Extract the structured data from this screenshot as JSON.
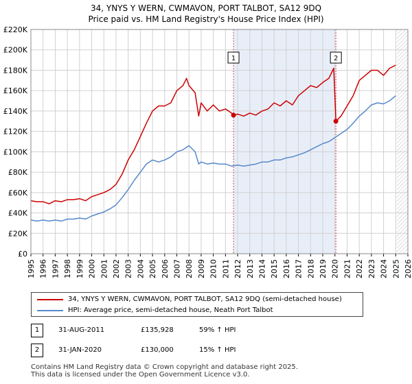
{
  "chart_data": {
    "type": "line",
    "title": "34, YNYS Y WERN, CWMAVON, PORT TALBOT, SA12 9DQ",
    "subtitle": "Price paid vs. HM Land Registry's House Price Index (HPI)",
    "x_range": [
      1995,
      2026
    ],
    "ylim": [
      0,
      220000
    ],
    "x_ticks": [
      "1995",
      "1996",
      "1997",
      "1998",
      "1999",
      "2000",
      "2001",
      "2002",
      "2003",
      "2004",
      "2005",
      "2006",
      "2007",
      "2008",
      "2009",
      "2010",
      "2011",
      "2012",
      "2013",
      "2014",
      "2015",
      "2016",
      "2017",
      "2018",
      "2019",
      "2020",
      "2021",
      "2022",
      "2023",
      "2024",
      "2025",
      "2026"
    ],
    "y_ticks": [
      "£0",
      "£20K",
      "£40K",
      "£60K",
      "£80K",
      "£100K",
      "£120K",
      "£140K",
      "£160K",
      "£180K",
      "£200K",
      "£220K"
    ],
    "series": [
      {
        "name": "34, YNYS Y WERN, CWMAVON, PORT TALBOT, SA12 9DQ (semi-detached house)",
        "color": "#cc0000",
        "x": [
          1995.0,
          1995.5,
          1996.0,
          1996.5,
          1997.0,
          1997.5,
          1998.0,
          1998.5,
          1999.0,
          1999.5,
          2000.0,
          2000.5,
          2001.0,
          2001.5,
          2002.0,
          2002.5,
          2003.0,
          2003.5,
          2004.0,
          2004.5,
          2005.0,
          2005.5,
          2006.0,
          2006.5,
          2007.0,
          2007.5,
          2007.8,
          2008.0,
          2008.5,
          2008.8,
          2009.0,
          2009.5,
          2010.0,
          2010.5,
          2011.0,
          2011.5,
          2011.66,
          2012.0,
          2012.5,
          2013.0,
          2013.5,
          2014.0,
          2014.5,
          2015.0,
          2015.5,
          2016.0,
          2016.5,
          2017.0,
          2017.5,
          2018.0,
          2018.5,
          2019.0,
          2019.5,
          2019.9,
          2020.08,
          2020.5,
          2021.0,
          2021.5,
          2022.0,
          2022.5,
          2023.0,
          2023.5,
          2024.0,
          2024.5,
          2025.0
        ],
        "values": [
          52000,
          51000,
          51000,
          49000,
          52000,
          51000,
          53000,
          53000,
          54000,
          52000,
          56000,
          58000,
          60000,
          63000,
          68000,
          78000,
          92000,
          102000,
          115000,
          128000,
          140000,
          145000,
          145000,
          148000,
          160000,
          165000,
          172000,
          165000,
          158000,
          135000,
          148000,
          140000,
          146000,
          140000,
          142000,
          138000,
          135928,
          137000,
          135000,
          138000,
          136000,
          140000,
          142000,
          148000,
          145000,
          150000,
          146000,
          155000,
          160000,
          165000,
          163000,
          168000,
          172000,
          182000,
          130000,
          135000,
          145000,
          155000,
          170000,
          175000,
          180000,
          180000,
          175000,
          182000,
          185000
        ]
      },
      {
        "name": "HPI: Average price, semi-detached house, Neath Port Talbot",
        "color": "#5588cc",
        "x": [
          1995.0,
          1995.5,
          1996.0,
          1996.5,
          1997.0,
          1997.5,
          1998.0,
          1998.5,
          1999.0,
          1999.5,
          2000.0,
          2000.5,
          2001.0,
          2001.5,
          2002.0,
          2002.5,
          2003.0,
          2003.5,
          2004.0,
          2004.5,
          2005.0,
          2005.5,
          2006.0,
          2006.5,
          2007.0,
          2007.5,
          2008.0,
          2008.5,
          2008.8,
          2009.0,
          2009.5,
          2010.0,
          2010.5,
          2011.0,
          2011.5,
          2012.0,
          2012.5,
          2013.0,
          2013.5,
          2014.0,
          2014.5,
          2015.0,
          2015.5,
          2016.0,
          2016.5,
          2017.0,
          2017.5,
          2018.0,
          2018.5,
          2019.0,
          2019.5,
          2020.0,
          2020.5,
          2021.0,
          2021.5,
          2022.0,
          2022.5,
          2023.0,
          2023.5,
          2024.0,
          2024.5,
          2025.0
        ],
        "values": [
          33000,
          32000,
          33000,
          32000,
          33000,
          32000,
          34000,
          34000,
          35000,
          34000,
          37000,
          39000,
          41000,
          44000,
          48000,
          55000,
          63000,
          72000,
          80000,
          88000,
          92000,
          90000,
          92000,
          95000,
          100000,
          102000,
          106000,
          100000,
          88000,
          90000,
          88000,
          89000,
          88000,
          88000,
          86000,
          87000,
          86000,
          87000,
          88000,
          90000,
          90000,
          92000,
          92000,
          94000,
          95000,
          97000,
          99000,
          102000,
          105000,
          108000,
          110000,
          114000,
          118000,
          122000,
          128000,
          135000,
          140000,
          146000,
          148000,
          147000,
          150000,
          155000
        ]
      }
    ],
    "sales": [
      {
        "label": "1",
        "x": 2011.66,
        "value": 135928
      },
      {
        "label": "2",
        "x": 2020.08,
        "value": 130000
      }
    ],
    "shaded_period": [
      2011.66,
      2020.08
    ],
    "future_from": 2025.08
  },
  "legend": {
    "property_label": "34, YNYS Y WERN, CWMAVON, PORT TALBOT, SA12 9DQ (semi-detached house)",
    "hpi_label": "HPI: Average price, semi-detached house, Neath Port Talbot"
  },
  "sales_table": [
    {
      "num": "1",
      "date": "31-AUG-2011",
      "price": "£135,928",
      "hpi": "59% ↑ HPI"
    },
    {
      "num": "2",
      "date": "31-JAN-2020",
      "price": "£130,000",
      "hpi": "15% ↑ HPI"
    }
  ],
  "footer": {
    "line1": "Contains HM Land Registry data © Crown copyright and database right 2025.",
    "line2": "This data is licensed under the Open Government Licence v3.0."
  },
  "colors": {
    "property": "#cc0000",
    "hpi": "#5588cc",
    "shade": "#e8eef8",
    "grid": "#d0d0d0"
  }
}
